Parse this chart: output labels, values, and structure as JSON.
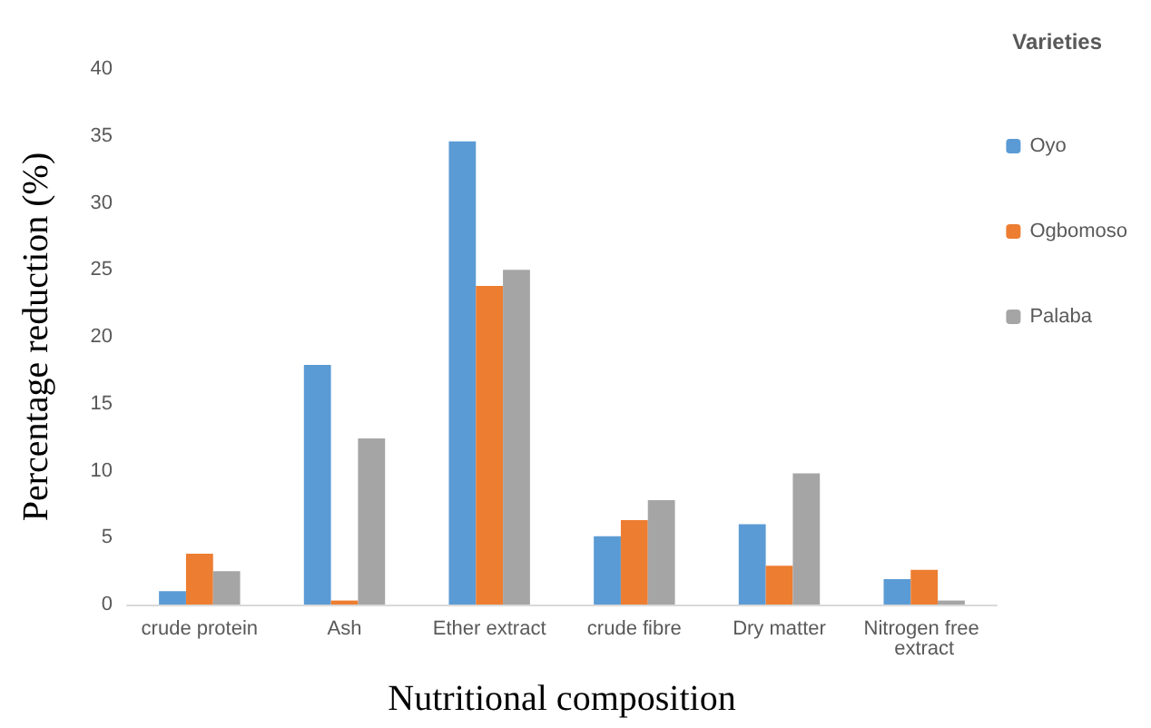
{
  "chart_data": {
    "type": "bar",
    "xlabel": "Nutritional composition",
    "ylabel": "Percentage reduction (%)",
    "legend_title": "Varieties",
    "legend": "right",
    "categories": [
      "crude protein",
      "Ash",
      "Ether extract",
      "crude fibre",
      "Dry matter",
      "Nitrogen free extract"
    ],
    "series": [
      {
        "name": "Oyo",
        "color": "#5b9bd5",
        "values": [
          1.0,
          17.9,
          34.6,
          5.1,
          6.0,
          1.9
        ]
      },
      {
        "name": "Ogbomoso",
        "color": "#ed7d31",
        "values": [
          3.8,
          0.3,
          23.8,
          6.3,
          2.9,
          2.6
        ]
      },
      {
        "name": "Palaba",
        "color": "#a5a5a5",
        "values": [
          2.5,
          12.4,
          25.0,
          7.8,
          9.8,
          0.3
        ]
      }
    ],
    "ylim": [
      0,
      40
    ],
    "yticks": [
      0,
      5,
      10,
      15,
      20,
      25,
      30,
      35,
      40
    ],
    "grid": false
  }
}
